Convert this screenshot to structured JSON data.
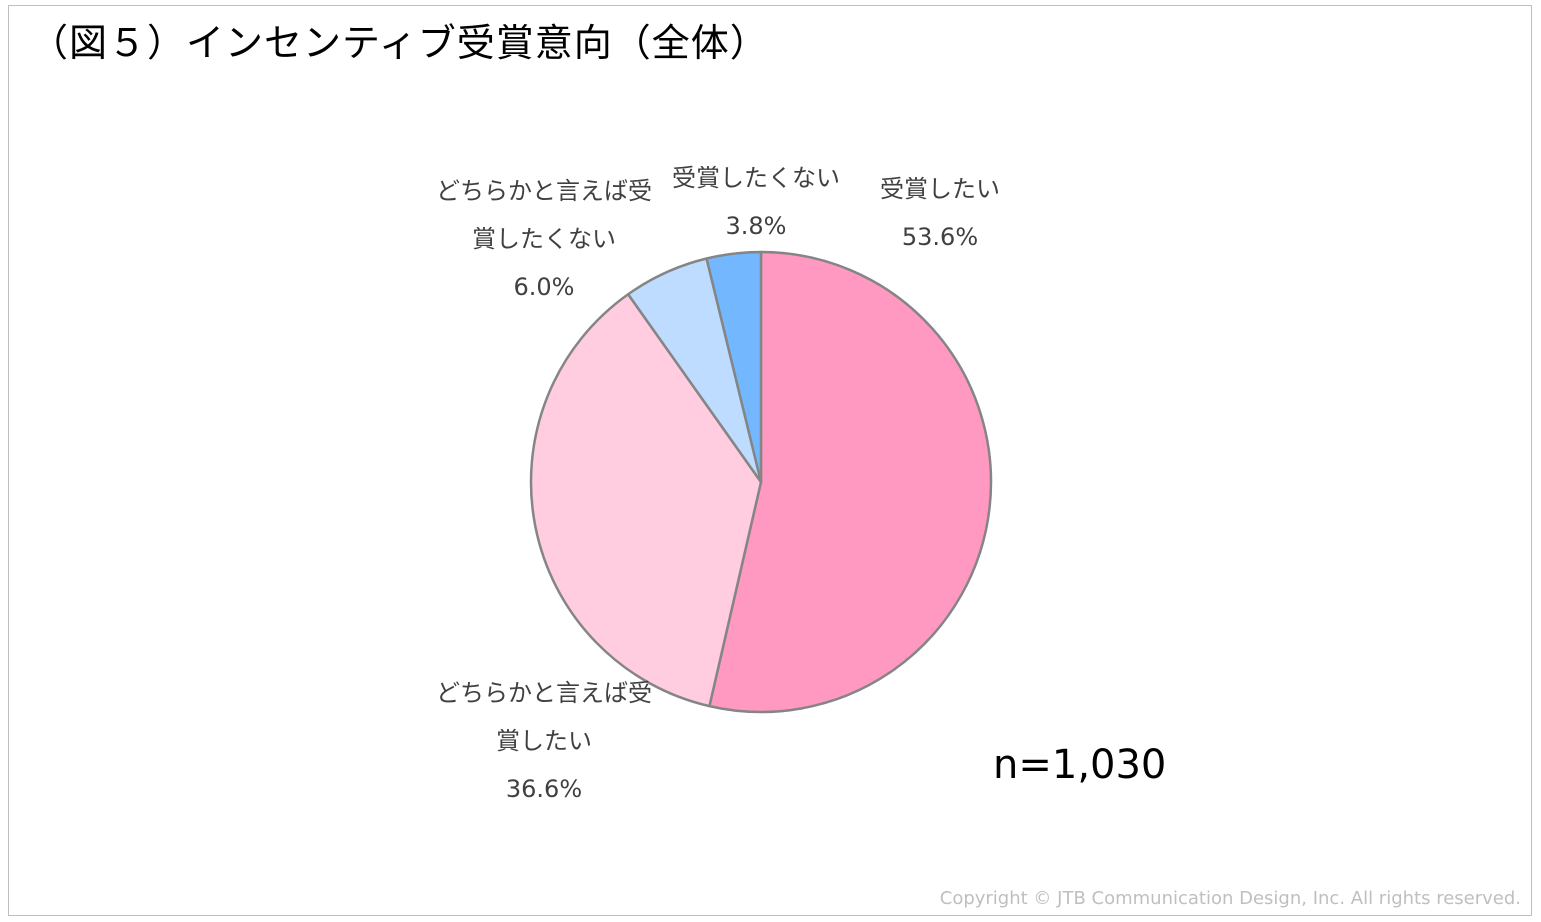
{
  "page": {
    "title": "（図５）インセンティブ受賞意向（全体）",
    "sample_size": "n=1,030",
    "copyright": "Copyright © JTB Communication Design, Inc. All rights reserved."
  },
  "chart_data": {
    "type": "pie",
    "title": "（図５）インセンティブ受賞意向（全体）",
    "start_angle_deg": 0,
    "direction": "clockwise",
    "slices": [
      {
        "name": "受賞したい",
        "label_lines": [
          "受賞したい"
        ],
        "value": 53.6,
        "value_label": "53.6%",
        "color": "#ff99c2"
      },
      {
        "name": "どちらかと言えば受賞したい",
        "label_lines": [
          "どちらかと言えば受",
          "賞したい"
        ],
        "value": 36.6,
        "value_label": "36.6%",
        "color": "#ffcce0"
      },
      {
        "name": "どちらかと言えば受賞したくない",
        "label_lines": [
          "どちらかと言えば受",
          "賞したくない"
        ],
        "value": 6.0,
        "value_label": "6.0%",
        "color": "#bddcff"
      },
      {
        "name": "受賞したくない",
        "label_lines": [
          "受賞したくない"
        ],
        "value": 3.8,
        "value_label": "3.8%",
        "color": "#73b7ff"
      }
    ],
    "slice_border_color": "#858585"
  }
}
